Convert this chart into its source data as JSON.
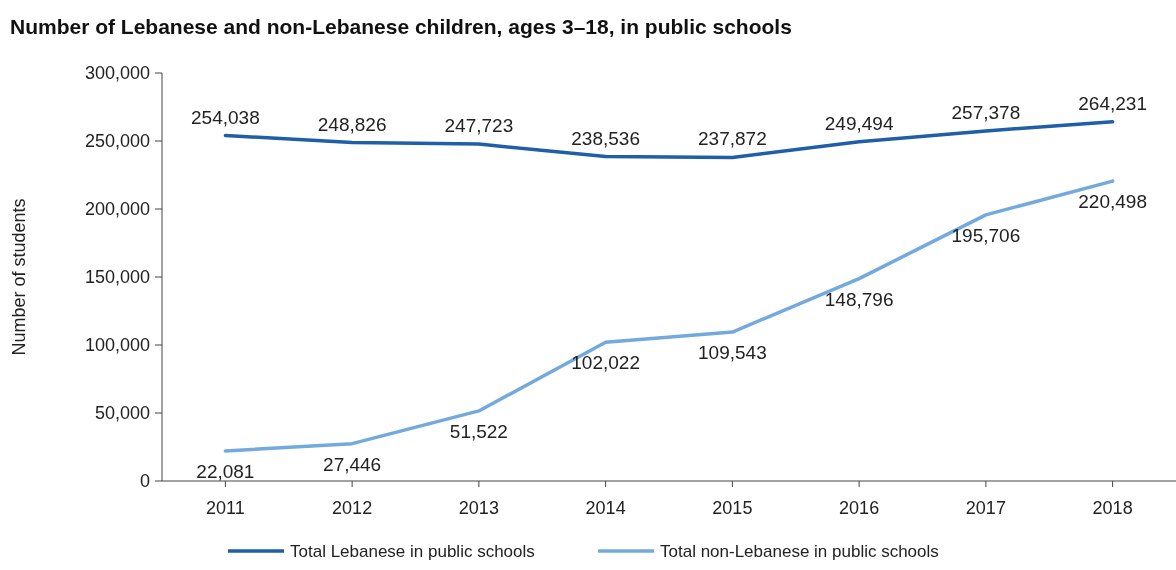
{
  "chart_data": {
    "type": "line",
    "title": "Number of Lebanese and non-Lebanese children, ages 3–18, in public schools",
    "ylabel": "Number of students",
    "categories": [
      "2011",
      "2012",
      "2013",
      "2014",
      "2015",
      "2016",
      "2017",
      "2018"
    ],
    "series": [
      {
        "name": "Total Lebanese in public schools",
        "color": "#1f5fa8",
        "values": [
          254038,
          248826,
          247723,
          238536,
          237872,
          249494,
          257378,
          264231
        ],
        "value_labels": [
          "254,038",
          "248,826",
          "247,723",
          "238,536",
          "237,872",
          "249,494",
          "257,378",
          "264,231"
        ]
      },
      {
        "name": "Total non-Lebanese in public schools",
        "color": "#74a9dd",
        "values": [
          22081,
          27446,
          51522,
          102022,
          109543,
          148796,
          195706,
          220498
        ],
        "value_labels": [
          "22,081",
          "27,446",
          "51,522",
          "102,022",
          "109,543",
          "148,796",
          "195,706",
          "220,498"
        ]
      }
    ],
    "ylim": [
      0,
      300000
    ],
    "yticks": [
      0,
      {
        "value": 50000,
        "label": "50,000"
      },
      {
        "value": 100000,
        "label": "100,000"
      },
      {
        "value": 150000,
        "label": "150,000"
      },
      {
        "value": 200000,
        "label": "200,000"
      },
      {
        "value": 250000,
        "label": "250,000"
      },
      {
        "value": 300000,
        "label": "300,000"
      }
    ],
    "legend": "bottom",
    "marker": "none",
    "line_style": "solid"
  }
}
